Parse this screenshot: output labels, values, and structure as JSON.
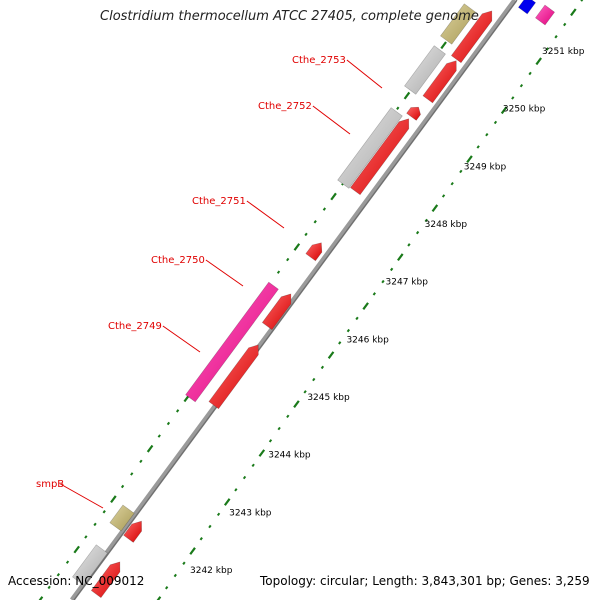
{
  "title": "Clostridium thermocellum ATCC 27405, complete genome",
  "footer": {
    "accession_label": "Accession:",
    "accession": "NC_009012",
    "topology_text": "Topology: circular; Length: 3,843,301 bp; Genes: 3,259"
  },
  "colors": {
    "backbone": "#9a9a9a",
    "gene_forward": "#ff0000",
    "gene_other": "#ff2299",
    "gene_rna": "#c8bd85",
    "gene_gray": "#c8c8c8",
    "gene_blue": "#0000ee",
    "label": "#e00000",
    "tick": "#1a7a1a"
  },
  "gene_labels": [
    {
      "name": "Cthe_2753"
    },
    {
      "name": "Cthe_2752"
    },
    {
      "name": "Cthe_2751"
    },
    {
      "name": "Cthe_2750"
    },
    {
      "name": "Cthe_2749"
    },
    {
      "name": "smpB"
    }
  ],
  "scale_ticks": [
    {
      "label": "3242 kbp"
    },
    {
      "label": "3243 kbp"
    },
    {
      "label": "3244 kbp"
    },
    {
      "label": "3245 kbp"
    },
    {
      "label": "3246 kbp"
    },
    {
      "label": "3247 kbp"
    },
    {
      "label": "3248 kbp"
    },
    {
      "label": "3249 kbp"
    },
    {
      "label": "3250 kbp"
    },
    {
      "label": "3251 kbp"
    }
  ]
}
